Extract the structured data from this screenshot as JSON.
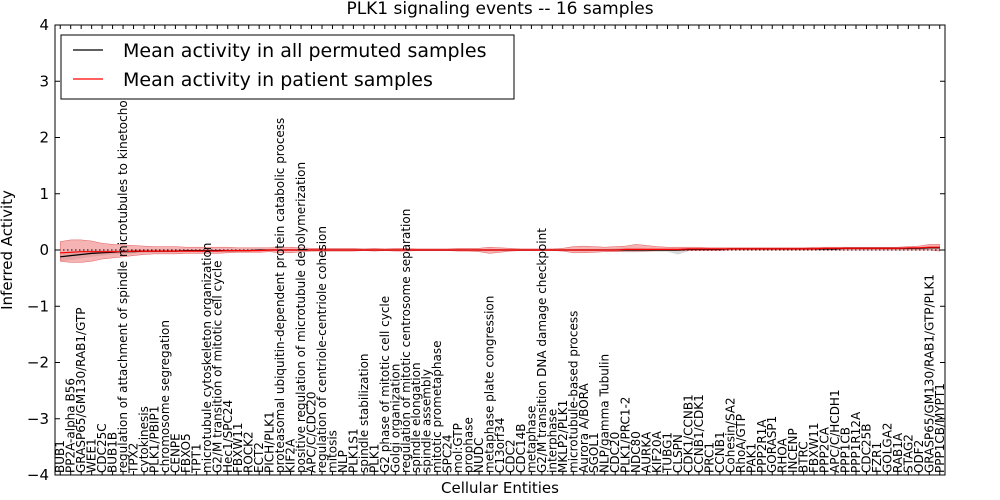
{
  "chart_data": {
    "type": "line",
    "title": "PLK1 signaling events -- 16 samples",
    "xlabel": "Cellular Entities",
    "ylabel": "Inferred Activity",
    "ylim": [
      -4,
      4
    ],
    "yticks": [
      "−4",
      "−3",
      "−2",
      "−1",
      "0",
      "1",
      "2",
      "3",
      "4"
    ],
    "grid": false,
    "legend_position": "top-left",
    "colors": {
      "mean_all": "#000000",
      "mean_patient": "#ff0000",
      "band_patient": "#f08080",
      "band_all": "#c8c8c8",
      "zero_line": "#000000"
    },
    "categories": [
      "BUB1",
      "PP2A-alpha B56",
      "GRASP65/GM130/RAB1/GTP",
      "WEE1",
      "CDC25C",
      "BUB1B",
      "regulation of attachment of spindle microtubules to kinetochore",
      "TPX2",
      "cytokinesis",
      "PLK1/PBIP1",
      "chromosome segregation",
      "CENPE",
      "FBXO5",
      "TPT1",
      "microtubule cytoskeleton organization",
      "G2/M transition of mitotic cell cycle",
      "Hec1/SPC24",
      "FBXW11",
      "ROCK2",
      "ECT2",
      "PICH/PLK1",
      "proteasomal ubiquitin-dependent protein catabolic process",
      "KIF2A",
      "positive regulation of microtubule depolymerization",
      "APC/C/CDC20",
      "regulation of centriole-centriole cohesion",
      "mitosis",
      "NLP",
      "PLK1S1",
      "spindle stabilization",
      "PLK1",
      "G2 phase of mitotic cell cycle",
      "Golgi organization",
      "regulation of mitotic centrosome separation",
      "spindle elongation",
      "spindle assembly",
      "mitotic prometaphase",
      "SPC24",
      "mol:GTP",
      "prophase",
      "NUDC",
      "metaphase plate congression",
      "C13orf34",
      "CDC2",
      "CDC14B",
      "metaphase",
      "G2/M transition DNA damage checkpoint",
      "interphase",
      "MKLP2/PLK1",
      "microtubule-based process",
      "Aurora A/BORA",
      "SGOL1",
      "NLP/gamma Tubulin",
      "CDC20",
      "PLK1/PRC1-2",
      "NDC80",
      "AURKA",
      "KIF20A",
      "TUBG1",
      "CLSPN",
      "CDK1/CCNB1",
      "CCNB1/CDK1",
      "PRC1",
      "CCNB1",
      "Cohesin/SA2",
      "RhoA/GTP",
      "PAK1",
      "PPP2R1A",
      "GORASP1",
      "RHOA",
      "INCENP",
      "BTRC",
      "FBXW11",
      "PPP2CA",
      "APC/C/HCDH1",
      "PPP1CB",
      "PPP1R12A",
      "CDC25B",
      "FZR1",
      "GOLGA2",
      "RAB1A",
      "STAG2",
      "ODF2",
      "GRASP65/GM130/RAB1/GTP/PLK1",
      "PPP1CB/MYPT1"
    ],
    "series": [
      {
        "name": "Mean activity in all permuted samples",
        "values": [
          -0.12,
          -0.1,
          -0.08,
          -0.06,
          -0.05,
          -0.04,
          -0.03,
          -0.03,
          -0.02,
          -0.02,
          -0.02,
          -0.02,
          -0.01,
          -0.01,
          -0.01,
          -0.01,
          -0.01,
          -0.01,
          -0.01,
          0,
          0,
          0,
          0,
          0,
          0,
          0,
          0,
          0,
          0,
          0,
          0,
          0,
          0,
          0,
          0,
          0,
          0,
          0,
          0,
          0,
          0,
          0,
          0,
          0,
          0,
          0,
          0,
          0,
          0,
          0,
          0,
          0,
          0,
          0,
          0,
          0,
          0,
          0,
          0,
          0,
          0.01,
          0.01,
          0.01,
          0.01,
          0.02,
          0.02,
          0.02,
          0.02,
          0.02,
          0.02,
          0.02,
          0.02,
          0.02,
          0.02,
          0.02,
          0.03,
          0.03,
          0.03,
          0.03,
          0.03,
          0.03,
          0.03,
          0.03,
          0.04,
          0.04
        ],
        "lower": [
          -0.2,
          -0.18,
          -0.15,
          -0.12,
          -0.1,
          -0.08,
          -0.07,
          -0.06,
          -0.05,
          -0.05,
          -0.04,
          -0.04,
          -0.03,
          -0.03,
          -0.03,
          -0.02,
          -0.02,
          -0.02,
          -0.02,
          -0.01,
          -0.01,
          -0.01,
          -0.01,
          -0.01,
          -0.01,
          -0.01,
          -0.01,
          -0.01,
          -0.01,
          -0.01,
          -0.01,
          -0.01,
          -0.01,
          -0.01,
          -0.01,
          -0.01,
          -0.01,
          -0.01,
          -0.01,
          -0.01,
          -0.01,
          -0.01,
          -0.01,
          -0.01,
          -0.01,
          -0.01,
          -0.01,
          -0.01,
          -0.01,
          -0.01,
          -0.02,
          -0.02,
          -0.02,
          -0.03,
          -0.04,
          -0.04,
          -0.03,
          -0.03,
          -0.03,
          -0.08,
          -0.02,
          -0.01,
          -0.01,
          -0.01,
          0,
          0,
          0,
          0,
          0,
          0,
          0,
          0,
          0,
          0,
          0,
          0,
          0,
          0,
          0,
          0,
          0,
          0,
          0,
          0.02,
          0.02
        ],
        "upper": [
          -0.04,
          -0.02,
          -0.01,
          0,
          0,
          0,
          0.01,
          0.01,
          0.01,
          0.01,
          0.01,
          0.01,
          0.01,
          0.01,
          0.01,
          0.01,
          0.01,
          0.01,
          0.01,
          0.01,
          0.01,
          0.01,
          0.01,
          0.01,
          0.01,
          0.01,
          0.01,
          0.01,
          0.01,
          0.01,
          0.01,
          0.01,
          0.01,
          0.01,
          0.01,
          0.01,
          0.01,
          0.01,
          0.01,
          0.01,
          0.01,
          0.01,
          0.01,
          0.01,
          0.01,
          0.01,
          0.01,
          0.01,
          0.01,
          0.01,
          0.02,
          0.02,
          0.02,
          0.03,
          0.04,
          0.04,
          0.03,
          0.03,
          0.03,
          0.03,
          0.03,
          0.03,
          0.03,
          0.03,
          0.04,
          0.04,
          0.04,
          0.04,
          0.04,
          0.04,
          0.04,
          0.04,
          0.04,
          0.04,
          0.04,
          0.05,
          0.05,
          0.05,
          0.05,
          0.05,
          0.05,
          0.05,
          0.05,
          0.06,
          0.06
        ]
      },
      {
        "name": "Mean activity in patient samples",
        "values": [
          -0.05,
          -0.04,
          -0.03,
          -0.03,
          -0.03,
          -0.03,
          -0.03,
          -0.02,
          -0.02,
          -0.02,
          -0.02,
          -0.02,
          -0.02,
          -0.02,
          -0.02,
          -0.02,
          -0.01,
          -0.01,
          -0.01,
          -0.01,
          0,
          0,
          0,
          0,
          0,
          0,
          0,
          0,
          0,
          0,
          0,
          0,
          0,
          0,
          0,
          0,
          0,
          0,
          0,
          0,
          0,
          0,
          0,
          0,
          0,
          0,
          0,
          0,
          0,
          0,
          0,
          0,
          0,
          0,
          0.01,
          0.01,
          0.01,
          0.01,
          0.01,
          0.01,
          0.02,
          0.02,
          0.02,
          0.02,
          0.02,
          0.02,
          0.02,
          0.02,
          0.02,
          0.02,
          0.02,
          0.02,
          0.02,
          0.03,
          0.03,
          0.03,
          0.03,
          0.03,
          0.03,
          0.03,
          0.03,
          0.04,
          0.04,
          0.05,
          0.05
        ],
        "lower": [
          -0.2,
          -0.22,
          -0.22,
          -0.2,
          -0.16,
          -0.14,
          -0.12,
          -0.1,
          -0.08,
          -0.07,
          -0.07,
          -0.07,
          -0.06,
          -0.06,
          -0.06,
          -0.06,
          -0.05,
          -0.04,
          -0.04,
          -0.04,
          -0.03,
          -0.05,
          -0.05,
          -0.03,
          -0.02,
          -0.02,
          -0.02,
          -0.02,
          -0.02,
          -0.01,
          -0.02,
          -0.01,
          -0.02,
          -0.02,
          -0.01,
          -0.01,
          -0.01,
          -0.01,
          -0.02,
          -0.02,
          -0.03,
          -0.06,
          -0.04,
          -0.02,
          -0.01,
          -0.01,
          -0.01,
          -0.01,
          -0.02,
          -0.05,
          -0.05,
          -0.04,
          -0.03,
          -0.03,
          -0.02,
          -0.02,
          -0.02,
          -0.01,
          -0.01,
          -0.01,
          -0.01,
          -0.01,
          -0.01,
          -0.01,
          0,
          0,
          0,
          0,
          0,
          0,
          0,
          0,
          0,
          0,
          0,
          0,
          0,
          0,
          0,
          0,
          0,
          0,
          0,
          0,
          -0.02
        ],
        "upper": [
          0.15,
          0.18,
          0.18,
          0.16,
          0.12,
          0.1,
          0.09,
          0.08,
          0.07,
          0.06,
          0.06,
          0.06,
          0.05,
          0.05,
          0.05,
          0.05,
          0.05,
          0.04,
          0.04,
          0.04,
          0.04,
          0.05,
          0.05,
          0.04,
          0.03,
          0.03,
          0.03,
          0.03,
          0.03,
          0.02,
          0.03,
          0.02,
          0.03,
          0.03,
          0.02,
          0.02,
          0.02,
          0.02,
          0.03,
          0.03,
          0.03,
          0.05,
          0.04,
          0.03,
          0.02,
          0.02,
          0.02,
          0.02,
          0.03,
          0.06,
          0.07,
          0.06,
          0.05,
          0.06,
          0.07,
          0.1,
          0.08,
          0.06,
          0.05,
          0.05,
          0.05,
          0.05,
          0.04,
          0.04,
          0.04,
          0.04,
          0.04,
          0.04,
          0.04,
          0.04,
          0.04,
          0.04,
          0.05,
          0.05,
          0.05,
          0.05,
          0.05,
          0.05,
          0.05,
          0.05,
          0.05,
          0.06,
          0.07,
          0.1,
          0.1
        ]
      }
    ]
  }
}
